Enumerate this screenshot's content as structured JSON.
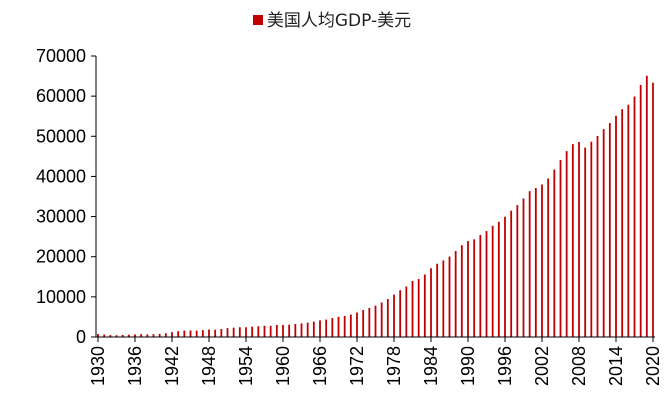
{
  "chart_data": {
    "type": "bar",
    "legend": {
      "label": "美国人均GDP-美元",
      "position": "top"
    },
    "colors": {
      "bar": "#C00000"
    },
    "ylim": [
      0,
      70000
    ],
    "yticks": [
      0,
      10000,
      20000,
      30000,
      40000,
      50000,
      60000,
      70000
    ],
    "xticks": [
      1930,
      1936,
      1942,
      1948,
      1954,
      1960,
      1966,
      1972,
      1978,
      1984,
      1990,
      1996,
      2002,
      2008,
      2014,
      2020
    ],
    "grid": false,
    "series": [
      {
        "name": "美国人均GDP-美元",
        "x": [
          1930,
          1931,
          1932,
          1933,
          1934,
          1935,
          1936,
          1937,
          1938,
          1939,
          1940,
          1941,
          1942,
          1943,
          1944,
          1945,
          1946,
          1947,
          1948,
          1949,
          1950,
          1951,
          1952,
          1953,
          1954,
          1955,
          1956,
          1957,
          1958,
          1959,
          1960,
          1961,
          1962,
          1963,
          1964,
          1965,
          1966,
          1967,
          1968,
          1969,
          1970,
          1971,
          1972,
          1973,
          1974,
          1975,
          1976,
          1977,
          1978,
          1979,
          1980,
          1981,
          1982,
          1983,
          1984,
          1985,
          1986,
          1987,
          1988,
          1989,
          1990,
          1991,
          1992,
          1993,
          1994,
          1995,
          1996,
          1997,
          1998,
          1999,
          2000,
          2001,
          2002,
          2003,
          2004,
          2005,
          2006,
          2007,
          2008,
          2009,
          2010,
          2011,
          2012,
          2013,
          2014,
          2015,
          2016,
          2017,
          2018,
          2019,
          2020
        ],
        "values": [
          750,
          620,
          480,
          450,
          520,
          580,
          650,
          710,
          670,
          700,
          770,
          930,
          1200,
          1450,
          1600,
          1630,
          1600,
          1720,
          1860,
          1820,
          1990,
          2210,
          2320,
          2430,
          2420,
          2570,
          2680,
          2790,
          2800,
          2990,
          3010,
          3070,
          3240,
          3370,
          3570,
          3830,
          4150,
          4330,
          4700,
          5030,
          5230,
          5600,
          6100,
          6730,
          7240,
          7820,
          8600,
          9460,
          10560,
          11670,
          12580,
          13980,
          14430,
          15560,
          17130,
          18240,
          19070,
          20040,
          21420,
          22860,
          23890,
          24340,
          25420,
          26390,
          27690,
          28690,
          29970,
          31460,
          32850,
          34510,
          36330,
          37130,
          37990,
          39490,
          41720,
          44110,
          46300,
          48050,
          48570,
          47190,
          48650,
          50070,
          51780,
          53290,
          55120,
          56760,
          57870,
          59910,
          62790,
          65080,
          63340
        ]
      }
    ]
  }
}
